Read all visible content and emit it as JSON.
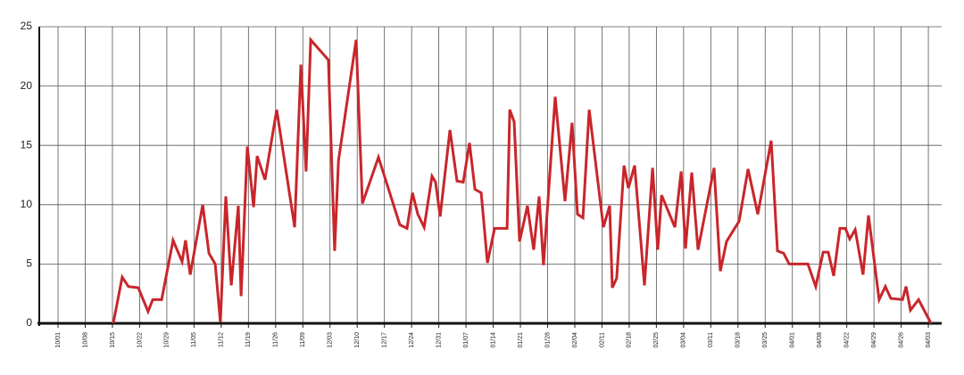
{
  "chart_data": {
    "type": "line",
    "x": [
      2.03,
      2.36,
      2.59,
      2.95,
      3.31,
      3.48,
      3.81,
      4.23,
      4.56,
      4.69,
      4.86,
      5.32,
      5.55,
      5.78,
      5.97,
      6.17,
      6.37,
      6.63,
      6.73,
      6.96,
      7.19,
      7.32,
      7.61,
      8.04,
      8.7,
      8.93,
      9.12,
      9.29,
      9.94,
      10.17,
      10.31,
      10.96,
      11.19,
      11.78,
      12.57,
      12.83,
      13.03,
      13.23,
      13.46,
      13.75,
      13.88,
      14.05,
      14.41,
      14.67,
      14.9,
      15.13,
      15.33,
      15.56,
      15.79,
      16.05,
      16.51,
      16.61,
      16.77,
      16.97,
      17.26,
      17.49,
      17.69,
      17.85,
      18.28,
      18.64,
      18.9,
      19.1,
      19.3,
      19.53,
      20.05,
      20.28,
      20.38,
      20.54,
      20.81,
      20.97,
      21.2,
      21.56,
      21.86,
      22.05,
      22.19,
      22.68,
      22.91,
      23.07,
      23.3,
      23.53,
      24.12,
      24.35,
      24.58,
      25.04,
      25.37,
      25.73,
      26.22,
      26.45,
      26.68,
      26.88,
      27.34,
      27.57,
      27.86,
      28.13,
      28.32,
      28.52,
      28.75,
      28.95,
      29.11,
      29.31,
      29.6,
      29.8,
      30.19,
      30.42,
      30.62,
      31.05,
      31.18,
      31.34,
      31.64,
      32.1
    ],
    "series": [
      {
        "color": "#c8262b",
        "values": [
          0,
          3.9,
          3.1,
          3.0,
          1.0,
          2.0,
          2.0,
          7.0,
          5.2,
          7.0,
          4.1,
          10.0,
          5.9,
          5.0,
          0.1,
          10.7,
          3.2,
          9.9,
          2.3,
          14.9,
          9.8,
          14.1,
          12.1,
          18.0,
          8.1,
          21.8,
          12.8,
          23.9,
          22.2,
          6.1,
          13.7,
          23.9,
          10.1,
          14.0,
          8.3,
          8.0,
          11.0,
          9.2,
          8.1,
          12.4,
          11.9,
          9.0,
          16.3,
          12.0,
          11.9,
          15.2,
          11.3,
          11.0,
          5.1,
          8.0,
          8.0,
          18.0,
          17.0,
          6.9,
          9.9,
          6.2,
          10.7,
          4.9,
          19.1,
          10.3,
          16.9,
          9.2,
          8.9,
          18.0,
          8.1,
          9.9,
          3.0,
          3.8,
          13.3,
          11.4,
          13.3,
          3.2,
          13.1,
          6.2,
          10.8,
          8.1,
          12.8,
          6.3,
          12.7,
          6.2,
          13.1,
          4.4,
          6.9,
          8.6,
          13.0,
          9.2,
          15.4,
          6.1,
          5.9,
          5.0,
          5.0,
          5.0,
          3.1,
          6.0,
          6.0,
          4.0,
          8.0,
          8.0,
          7.1,
          7.9,
          4.1,
          9.1,
          2.0,
          3.1,
          2.1,
          2.0,
          3.1,
          1.1,
          2.0,
          0.0
        ]
      }
    ],
    "xlim": [
      -0.69,
      32.49
    ],
    "xticks": [
      {
        "value": 0,
        "label": "10/01"
      },
      {
        "value": 1,
        "label": "10/08"
      },
      {
        "value": 2,
        "label": "10/15"
      },
      {
        "value": 3,
        "label": "10/22"
      },
      {
        "value": 4,
        "label": "10/29"
      },
      {
        "value": 5,
        "label": "11/05"
      },
      {
        "value": 6,
        "label": "11/12"
      },
      {
        "value": 7,
        "label": "11/19"
      },
      {
        "value": 8,
        "label": "11/26"
      },
      {
        "value": 9,
        "label": "11/09"
      },
      {
        "value": 10,
        "label": "12/03"
      },
      {
        "value": 11,
        "label": "12/10"
      },
      {
        "value": 12,
        "label": "12/17"
      },
      {
        "value": 13,
        "label": "12/24"
      },
      {
        "value": 14,
        "label": "12/31"
      },
      {
        "value": 15,
        "label": "01/07"
      },
      {
        "value": 16,
        "label": "01/14"
      },
      {
        "value": 17,
        "label": "01/21"
      },
      {
        "value": 18,
        "label": "01/28"
      },
      {
        "value": 19,
        "label": "02/04"
      },
      {
        "value": 20,
        "label": "02/11"
      },
      {
        "value": 21,
        "label": "02/18"
      },
      {
        "value": 22,
        "label": "02/25"
      },
      {
        "value": 23,
        "label": "03/04"
      },
      {
        "value": 24,
        "label": "03/11"
      },
      {
        "value": 25,
        "label": "03/18"
      },
      {
        "value": 26,
        "label": "03/25"
      },
      {
        "value": 27,
        "label": "04/01"
      },
      {
        "value": 28,
        "label": "04/08"
      },
      {
        "value": 29,
        "label": "04/22"
      },
      {
        "value": 30,
        "label": "04/29"
      },
      {
        "value": 31,
        "label": "04/26"
      },
      {
        "value": 32,
        "label": "04/03"
      }
    ],
    "ylim": [
      0,
      25
    ],
    "yticks": [
      0,
      5,
      10,
      15,
      20,
      25
    ],
    "grid": true
  }
}
